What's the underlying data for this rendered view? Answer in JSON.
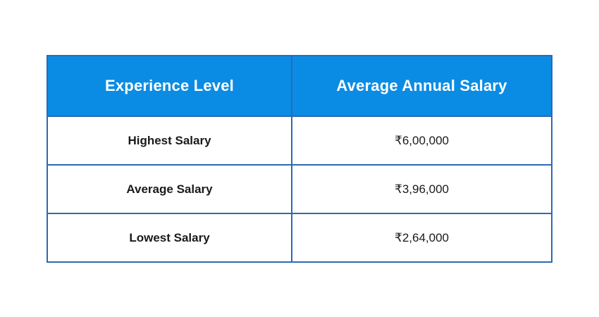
{
  "colors": {
    "header_bg": "#0b8ce4",
    "header_text": "#ffffff",
    "border": "#2b6ab3",
    "body_text": "#1a1a1a",
    "page_bg": "#ffffff"
  },
  "table": {
    "header": {
      "col1": "Experience Level",
      "col2": "Average Annual Salary"
    },
    "rows": [
      {
        "level": "Highest Salary",
        "salary": "₹6,00,000"
      },
      {
        "level": "Average Salary",
        "salary": "₹3,96,000"
      },
      {
        "level": "Lowest Salary",
        "salary": "₹2,64,000"
      }
    ]
  },
  "chart_data": {
    "type": "table",
    "title": "",
    "columns": [
      "Experience Level",
      "Average Annual Salary"
    ],
    "rows": [
      [
        "Highest Salary",
        "₹6,00,000"
      ],
      [
        "Average Salary",
        "₹3,96,000"
      ],
      [
        "Lowest Salary",
        "₹2,64,000"
      ]
    ],
    "values_inr": [
      600000,
      396000,
      264000
    ],
    "currency": "INR"
  }
}
